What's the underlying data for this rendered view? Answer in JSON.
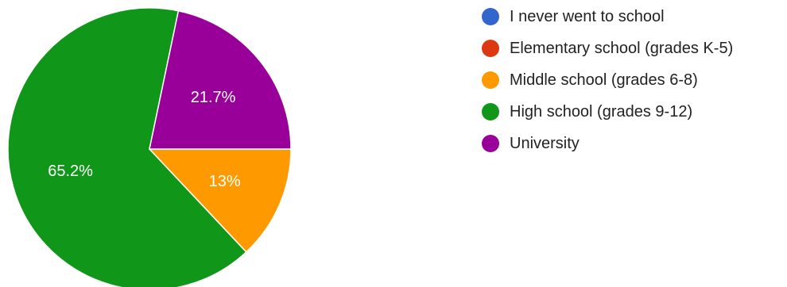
{
  "chart_data": {
    "type": "pie",
    "title": "",
    "legend_position": "right",
    "start_angle_deg": 0,
    "direction": "clockwise",
    "slices": [
      {
        "label": "I never went to school",
        "value": 0,
        "percent_label": "",
        "color": "#3366cc"
      },
      {
        "label": "Elementary school (grades K-5)",
        "value": 0,
        "percent_label": "",
        "color": "#dc3912"
      },
      {
        "label": "Middle school (grades 6-8)",
        "value": 13.0,
        "percent_label": "13%",
        "color": "#ff9900"
      },
      {
        "label": "High school (grades 9-12)",
        "value": 65.2,
        "percent_label": "65.2%",
        "color": "#109618"
      },
      {
        "label": "University",
        "value": 21.7,
        "percent_label": "21.7%",
        "color": "#990099"
      }
    ]
  }
}
